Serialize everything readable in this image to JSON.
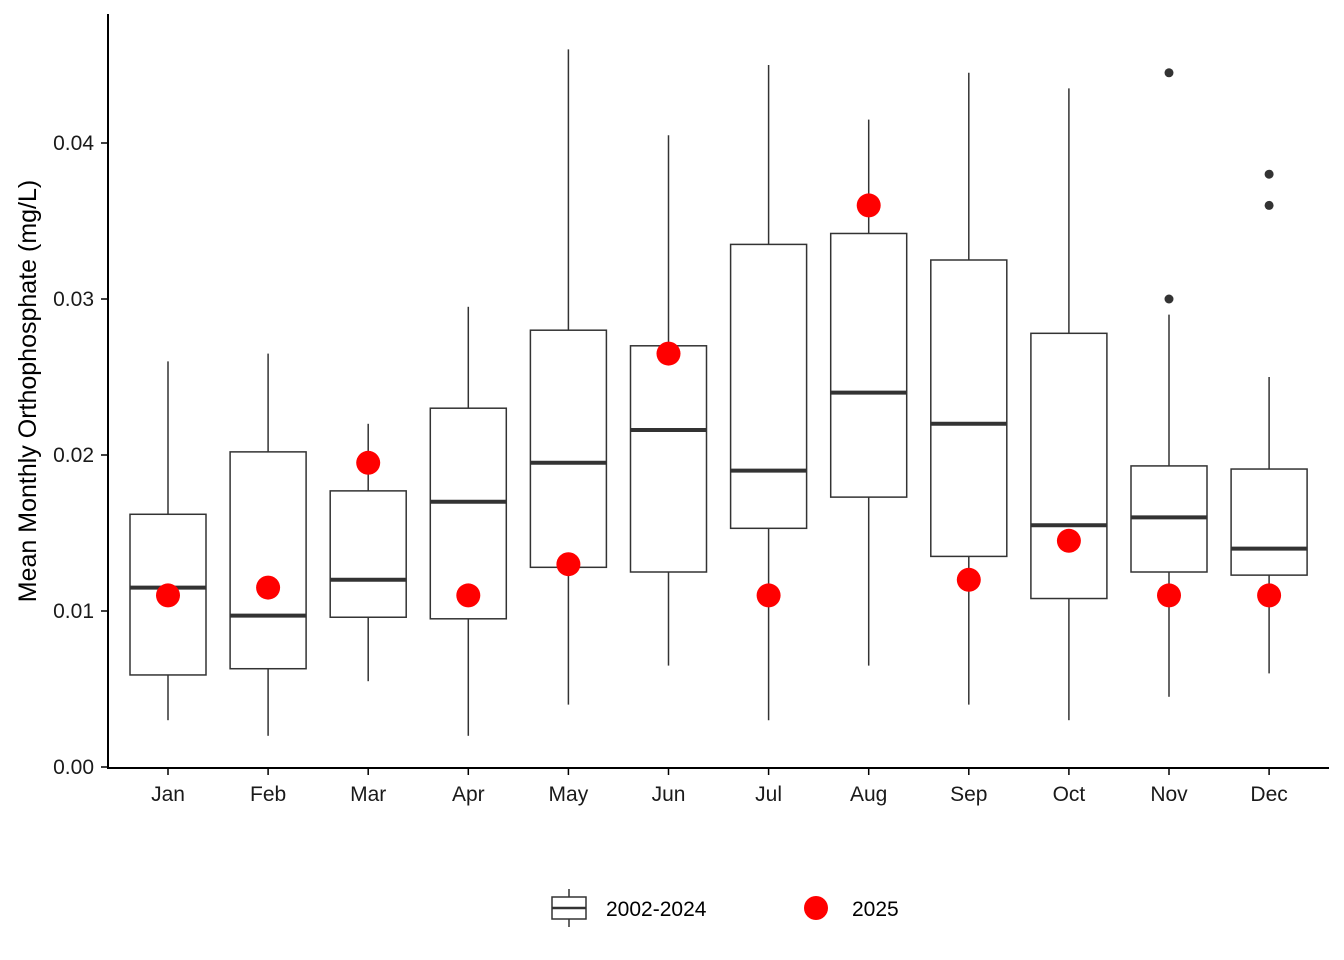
{
  "chart_data": {
    "type": "box",
    "ylabel": "Mean Monthly Orthophosphate (mg/L)",
    "xlabel": "",
    "ylim": [
      0,
      0.046
    ],
    "y_ticks": [
      "0.00",
      "0.01",
      "0.02",
      "0.03",
      "0.04"
    ],
    "y_tick_values": [
      0.0,
      0.01,
      0.02,
      0.03,
      0.04
    ],
    "categories": [
      "Jan",
      "Feb",
      "Mar",
      "Apr",
      "May",
      "Jun",
      "Jul",
      "Aug",
      "Sep",
      "Oct",
      "Nov",
      "Dec"
    ],
    "grid": false,
    "legend_position": "bottom",
    "series": [
      {
        "name": "2002-2024",
        "kind": "boxplot",
        "boxes": [
          {
            "min": 0.003,
            "q1": 0.0059,
            "median": 0.0115,
            "q3": 0.0162,
            "max": 0.026,
            "outliers": []
          },
          {
            "min": 0.002,
            "q1": 0.0063,
            "median": 0.0097,
            "q3": 0.0202,
            "max": 0.0265,
            "outliers": []
          },
          {
            "min": 0.0055,
            "q1": 0.0096,
            "median": 0.012,
            "q3": 0.0177,
            "max": 0.022,
            "outliers": []
          },
          {
            "min": 0.002,
            "q1": 0.0095,
            "median": 0.017,
            "q3": 0.023,
            "max": 0.0295,
            "outliers": []
          },
          {
            "min": 0.004,
            "q1": 0.0128,
            "median": 0.0195,
            "q3": 0.028,
            "max": 0.046,
            "outliers": []
          },
          {
            "min": 0.0065,
            "q1": 0.0125,
            "median": 0.0216,
            "q3": 0.027,
            "max": 0.0405,
            "outliers": []
          },
          {
            "min": 0.003,
            "q1": 0.0153,
            "median": 0.019,
            "q3": 0.0335,
            "max": 0.045,
            "outliers": []
          },
          {
            "min": 0.0065,
            "q1": 0.0173,
            "median": 0.024,
            "q3": 0.0342,
            "max": 0.0415,
            "outliers": []
          },
          {
            "min": 0.004,
            "q1": 0.0135,
            "median": 0.022,
            "q3": 0.0325,
            "max": 0.0445,
            "outliers": []
          },
          {
            "min": 0.003,
            "q1": 0.0108,
            "median": 0.0155,
            "q3": 0.0278,
            "max": 0.0435,
            "outliers": []
          },
          {
            "min": 0.0045,
            "q1": 0.0125,
            "median": 0.016,
            "q3": 0.0193,
            "max": 0.029,
            "outliers": [
              0.03,
              0.0445
            ]
          },
          {
            "min": 0.006,
            "q1": 0.0123,
            "median": 0.014,
            "q3": 0.0191,
            "max": 0.025,
            "outliers": [
              0.036,
              0.038
            ]
          }
        ]
      },
      {
        "name": "2025",
        "kind": "points",
        "color": "#ff0000",
        "values": [
          0.011,
          0.0115,
          0.0195,
          0.011,
          0.013,
          0.0265,
          0.011,
          0.036,
          0.012,
          0.0145,
          0.011,
          0.011
        ]
      }
    ]
  }
}
